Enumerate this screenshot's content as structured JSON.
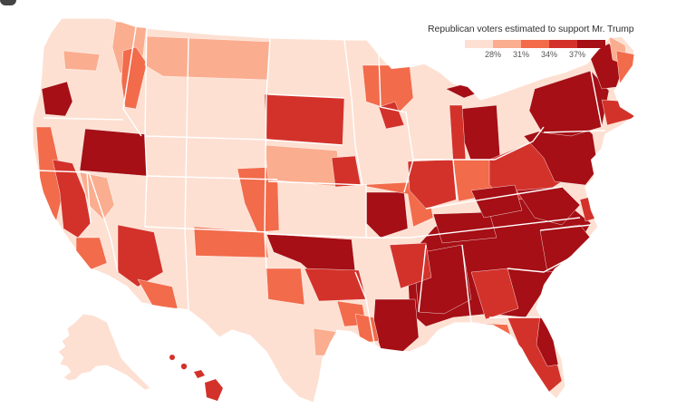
{
  "legend": {
    "title": "Republican voters estimated to support Mr. Trump",
    "ticks": [
      "28%",
      "31%",
      "34%",
      "37%"
    ],
    "colors": [
      "#fde0d2",
      "#fbad8f",
      "#f26b4b",
      "#d3322b",
      "#a50f15"
    ]
  },
  "map": {
    "subject": "Contiguous United States, Alaska and Hawaii by congressional district"
  }
}
